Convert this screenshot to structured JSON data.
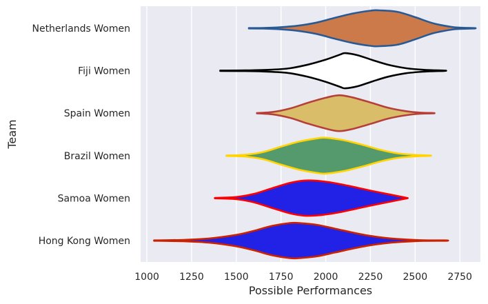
{
  "chart_data": {
    "type": "violin",
    "orientation": "horizontal",
    "xlabel": "Possible Performances",
    "ylabel": "Team",
    "xlim": [
      965,
      2865
    ],
    "xticks": [
      1000,
      1250,
      1500,
      1750,
      2000,
      2250,
      2500,
      2750
    ],
    "grid": true,
    "background_color": "#eaeaf2",
    "series": [
      {
        "name": "Netherlands Women",
        "fill": "#cd7a4a",
        "stroke": "#2a5a94",
        "density": [
          [
            1570,
            0.01
          ],
          [
            1650,
            0.02
          ],
          [
            1750,
            0.06
          ],
          [
            1850,
            0.15
          ],
          [
            1950,
            0.32
          ],
          [
            2050,
            0.58
          ],
          [
            2150,
            0.82
          ],
          [
            2250,
            0.98
          ],
          [
            2300,
            1.0
          ],
          [
            2400,
            0.92
          ],
          [
            2500,
            0.62
          ],
          [
            2600,
            0.28
          ],
          [
            2700,
            0.08
          ],
          [
            2760,
            0.03
          ],
          [
            2830,
            0.01
          ]
        ]
      },
      {
        "name": "Fiji Women",
        "fill": "#ffffff",
        "stroke": "#000000",
        "density": [
          [
            1410,
            0.01
          ],
          [
            1550,
            0.02
          ],
          [
            1700,
            0.06
          ],
          [
            1800,
            0.14
          ],
          [
            1900,
            0.34
          ],
          [
            2000,
            0.62
          ],
          [
            2080,
            0.9
          ],
          [
            2110,
            0.98
          ],
          [
            2180,
            0.86
          ],
          [
            2260,
            0.6
          ],
          [
            2350,
            0.33
          ],
          [
            2450,
            0.14
          ],
          [
            2550,
            0.05
          ],
          [
            2660,
            0.01
          ]
        ]
      },
      {
        "name": "Spain Women",
        "fill": "#d9bd69",
        "stroke": "#b5403a",
        "density": [
          [
            1615,
            0.01
          ],
          [
            1700,
            0.06
          ],
          [
            1800,
            0.26
          ],
          [
            1900,
            0.58
          ],
          [
            2000,
            0.86
          ],
          [
            2075,
            1.0
          ],
          [
            2150,
            0.88
          ],
          [
            2250,
            0.6
          ],
          [
            2350,
            0.3
          ],
          [
            2450,
            0.11
          ],
          [
            2530,
            0.03
          ],
          [
            2600,
            0.01
          ]
        ]
      },
      {
        "name": "Brazil Women",
        "fill": "#549a6d",
        "stroke": "#ffd400",
        "density": [
          [
            1445,
            0.01
          ],
          [
            1550,
            0.05
          ],
          [
            1650,
            0.2
          ],
          [
            1750,
            0.5
          ],
          [
            1850,
            0.78
          ],
          [
            1950,
            0.96
          ],
          [
            2000,
            1.0
          ],
          [
            2100,
            0.86
          ],
          [
            2200,
            0.62
          ],
          [
            2300,
            0.34
          ],
          [
            2400,
            0.13
          ],
          [
            2500,
            0.04
          ],
          [
            2580,
            0.01
          ]
        ]
      },
      {
        "name": "Samoa Women",
        "fill": "#2222e6",
        "stroke": "#ff0000",
        "density": [
          [
            1380,
            0.01
          ],
          [
            1500,
            0.06
          ],
          [
            1600,
            0.24
          ],
          [
            1700,
            0.55
          ],
          [
            1800,
            0.85
          ],
          [
            1880,
            0.98
          ],
          [
            1950,
            0.97
          ],
          [
            2050,
            0.84
          ],
          [
            2150,
            0.64
          ],
          [
            2250,
            0.42
          ],
          [
            2350,
            0.22
          ],
          [
            2420,
            0.08
          ],
          [
            2455,
            0.01
          ]
        ]
      },
      {
        "name": "Hong Kong Women",
        "fill": "#2222e6",
        "stroke": "#cc2200",
        "density": [
          [
            1040,
            0.01
          ],
          [
            1200,
            0.04
          ],
          [
            1350,
            0.12
          ],
          [
            1500,
            0.32
          ],
          [
            1600,
            0.55
          ],
          [
            1700,
            0.82
          ],
          [
            1800,
            0.98
          ],
          [
            1850,
            0.98
          ],
          [
            1950,
            0.88
          ],
          [
            2050,
            0.67
          ],
          [
            2150,
            0.45
          ],
          [
            2250,
            0.26
          ],
          [
            2350,
            0.13
          ],
          [
            2450,
            0.06
          ],
          [
            2550,
            0.02
          ],
          [
            2670,
            0.01
          ]
        ]
      }
    ]
  }
}
